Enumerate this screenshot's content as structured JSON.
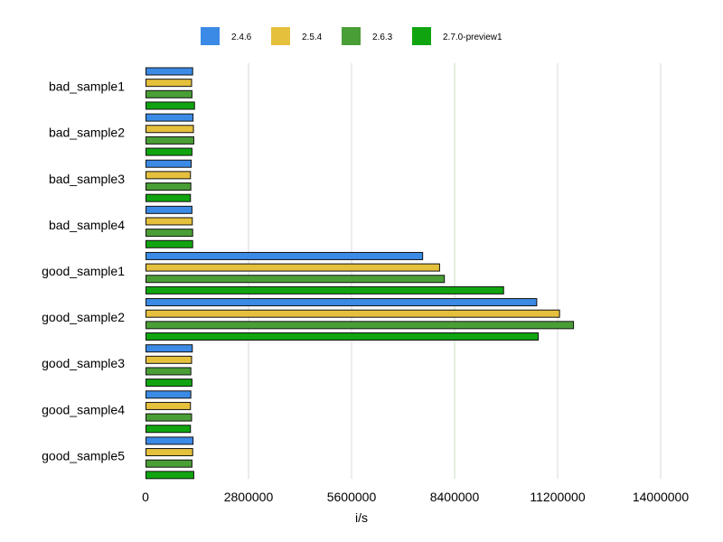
{
  "chart_data": {
    "type": "bar",
    "orientation": "horizontal",
    "categories": [
      "bad_sample1",
      "bad_sample2",
      "bad_sample3",
      "bad_sample4",
      "good_sample1",
      "good_sample2",
      "good_sample3",
      "good_sample4",
      "good_sample5"
    ],
    "series": [
      {
        "name": "2.4.6",
        "color": "#3b8ae6",
        "values": [
          1270000,
          1280000,
          1230000,
          1250000,
          7520000,
          10620000,
          1260000,
          1220000,
          1280000
        ]
      },
      {
        "name": "2.5.4",
        "color": "#e5c03c",
        "values": [
          1240000,
          1290000,
          1210000,
          1260000,
          7980000,
          11240000,
          1240000,
          1210000,
          1270000
        ]
      },
      {
        "name": "2.6.3",
        "color": "#4a9e36",
        "values": [
          1250000,
          1300000,
          1220000,
          1270000,
          8110000,
          11620000,
          1220000,
          1240000,
          1250000
        ]
      },
      {
        "name": "2.7.0-preview1",
        "color": "#10a510",
        "values": [
          1320000,
          1250000,
          1210000,
          1270000,
          9720000,
          10660000,
          1250000,
          1210000,
          1300000
        ]
      }
    ],
    "xlabel": "i/s",
    "ylabel": "",
    "xlim": [
      0,
      14000000
    ],
    "xticks": [
      "0",
      "2800000",
      "5600000",
      "8400000",
      "11200000",
      "14000000"
    ],
    "legend_position": "top",
    "grid": true
  }
}
